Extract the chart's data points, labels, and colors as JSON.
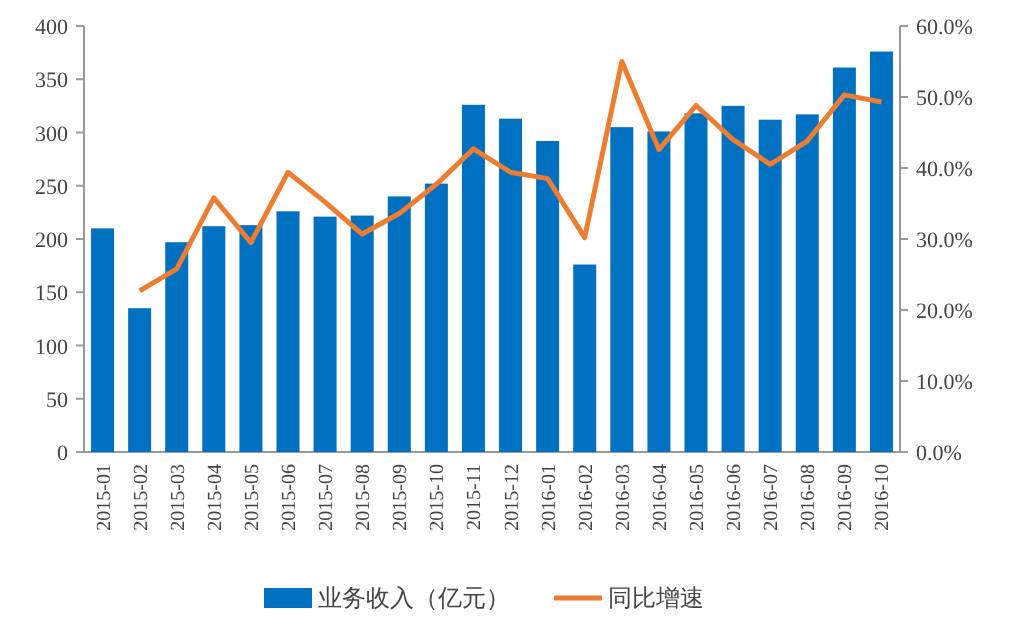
{
  "chart_data": {
    "type": "bar",
    "categories": [
      "2015-01",
      "2015-02",
      "2015-03",
      "2015-04",
      "2015-05",
      "2015-06",
      "2015-07",
      "2015-08",
      "2015-09",
      "2015-10",
      "2015-11",
      "2015-12",
      "2016-01",
      "2016-02",
      "2016-03",
      "2016-04",
      "2016-05",
      "2016-06",
      "2016-07",
      "2016-08",
      "2016-09",
      "2016-10"
    ],
    "series": [
      {
        "name": "业务收入（亿元）",
        "color": "#0070c0",
        "values": [
          210,
          135,
          197,
          212,
          213,
          226,
          221,
          222,
          240,
          252,
          326,
          313,
          292,
          176,
          305,
          301,
          318,
          325,
          312,
          317,
          361,
          376
        ]
      },
      {
        "name": "同比增速",
        "type": "line",
        "axis": "y2",
        "color": "#ed7d31",
        "values": [
          null,
          22.7,
          25.8,
          35.8,
          29.5,
          39.4,
          35.2,
          30.7,
          33.6,
          37.7,
          42.7,
          39.4,
          38.5,
          30.2,
          55.0,
          42.6,
          48.8,
          44.0,
          40.5,
          43.8,
          50.3,
          49.3
        ]
      }
    ],
    "ylim": [
      0,
      400
    ],
    "yticks": [
      0,
      50,
      100,
      150,
      200,
      250,
      300,
      350,
      400
    ],
    "y2lim": [
      0,
      60
    ],
    "y2ticks": [
      {
        "value": 0,
        "label": "0.0%"
      },
      {
        "value": 10,
        "label": "10.0%"
      },
      {
        "value": 20,
        "label": "20.0%"
      },
      {
        "value": 30,
        "label": "30.0%"
      },
      {
        "value": 40,
        "label": "40.0%"
      },
      {
        "value": 50,
        "label": "50.0%"
      },
      {
        "value": 60,
        "label": "60.0%"
      }
    ],
    "grid": false,
    "legend": "bottom",
    "marker": "none",
    "line_style": "solid"
  }
}
